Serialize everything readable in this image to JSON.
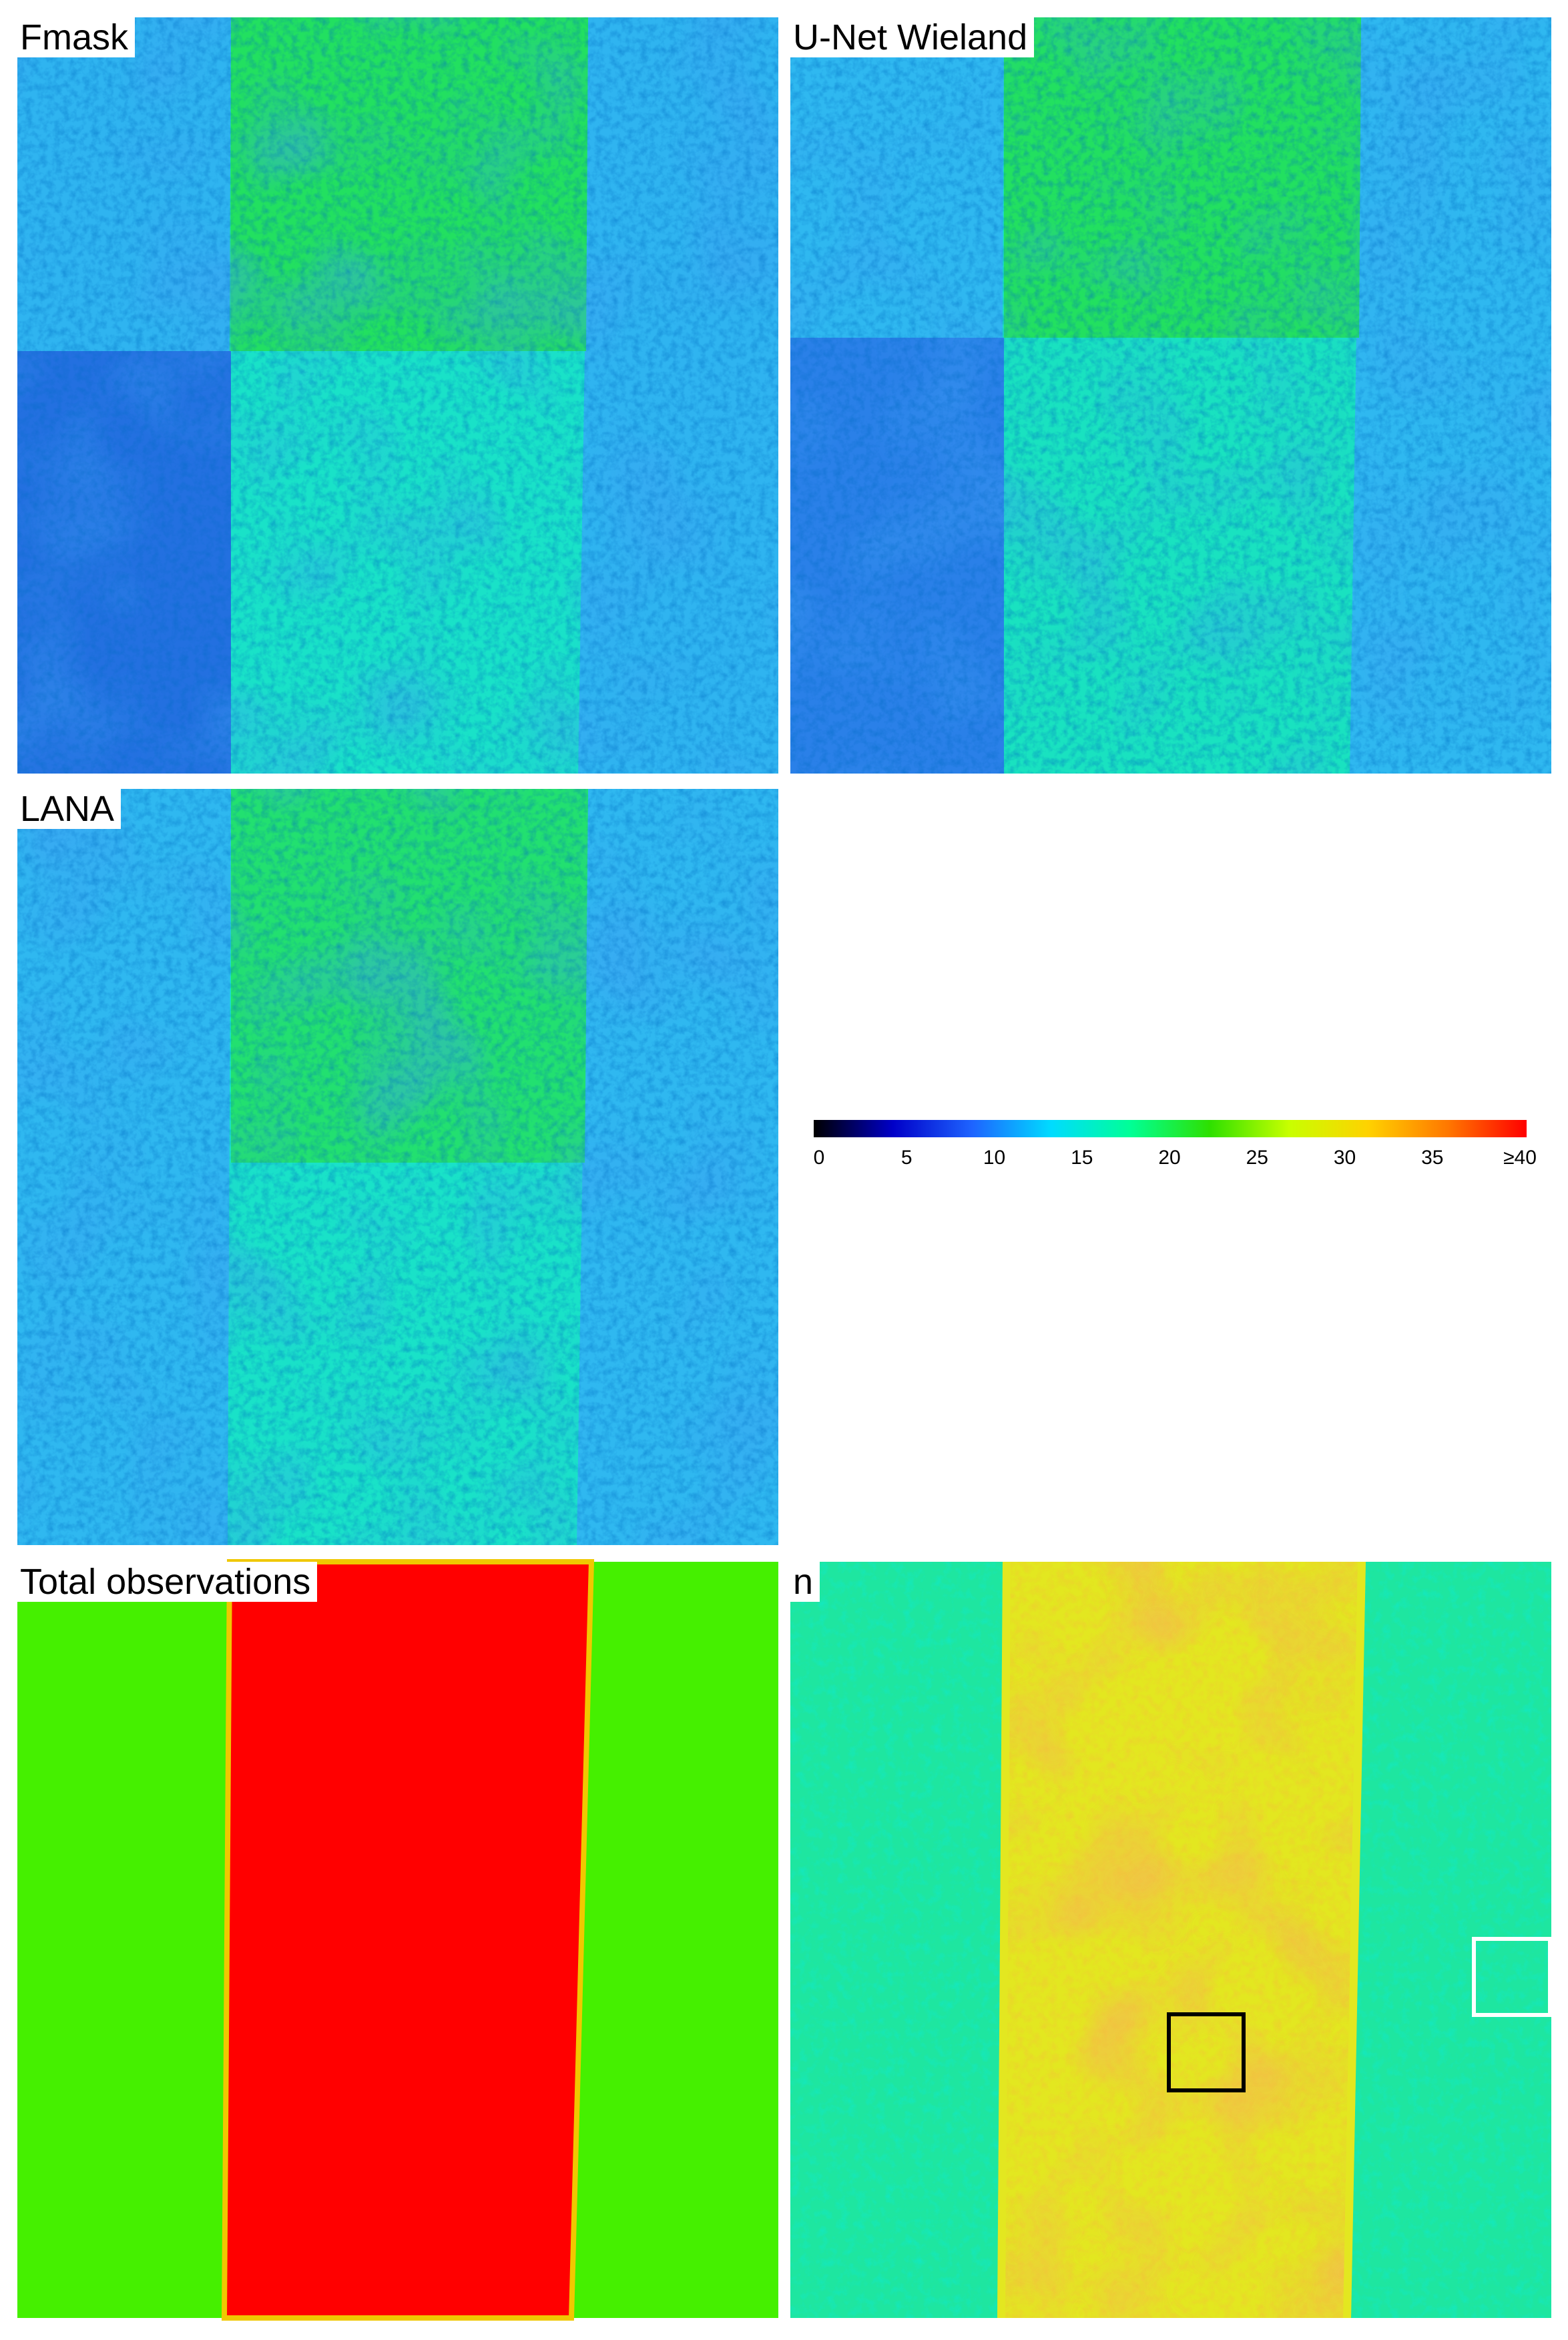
{
  "panels": {
    "fmask": {
      "label": "Fmask"
    },
    "unet": {
      "label": "U-Net Wieland"
    },
    "lana": {
      "label": "LANA"
    },
    "total": {
      "label": "Total observations"
    },
    "n": {
      "label": "n"
    }
  },
  "colorbar": {
    "ticks": [
      "0",
      "5",
      "10",
      "15",
      "20",
      "25",
      "30",
      "35",
      "≥40"
    ],
    "value_range": [
      0,
      40
    ],
    "colors": [
      "#000000",
      "#0000c8",
      "#1e64ff",
      "#00dcff",
      "#00ff96",
      "#2ee000",
      "#c8ff00",
      "#ffd200",
      "#ff7800",
      "#ff0000"
    ]
  },
  "colors": {
    "low_blue": "#2f7fe8",
    "mid_cyan": "#19e8f0",
    "mid_green": "#22e860",
    "high_yellow": "#f5e61e",
    "high_orange": "#f08a1e",
    "total_green": "#45f000",
    "total_red": "#ff0000",
    "box_black": "#000000",
    "box_white": "#ffffff"
  }
}
